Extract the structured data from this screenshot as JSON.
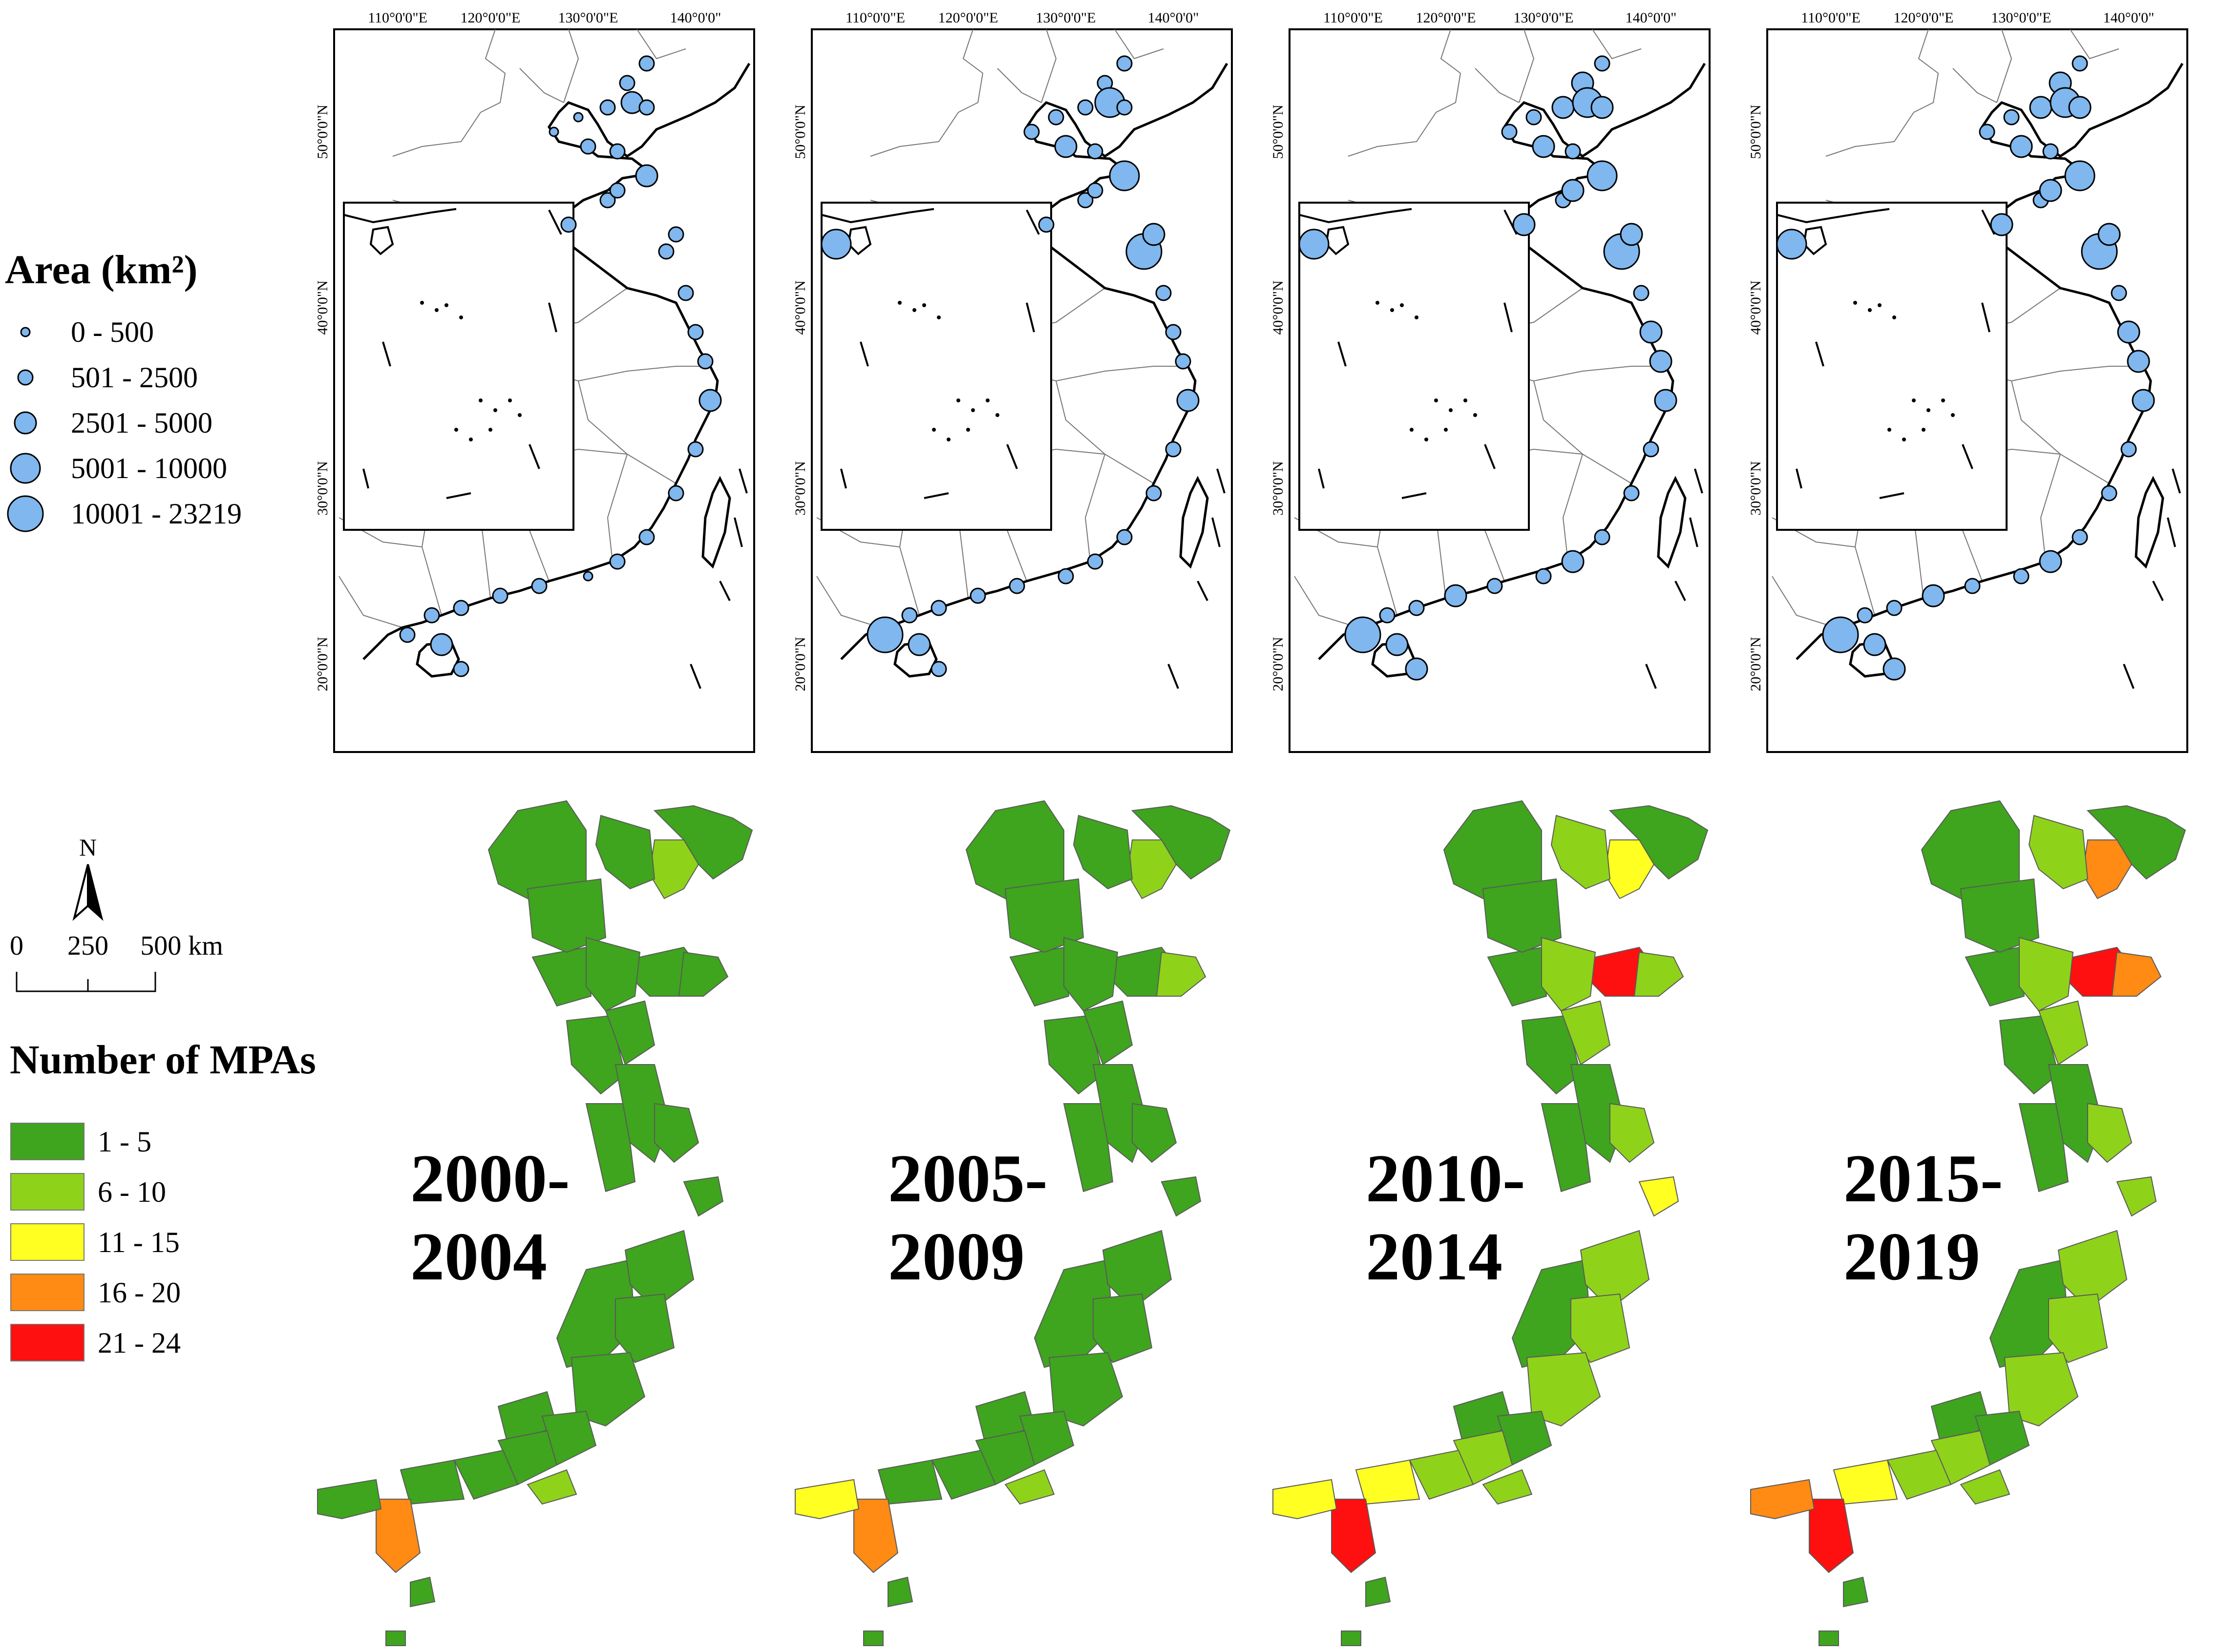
{
  "area_legend": {
    "title": "Area (km²)",
    "classes": [
      "0 - 500",
      "501 - 2500",
      "2501 - 5000",
      "5001 - 10000",
      "10001 - 23219"
    ]
  },
  "count_legend": {
    "title": "Number of MPAs",
    "classes": [
      {
        "label": "1 - 5",
        "color": "#3fa41e"
      },
      {
        "label": "6 - 10",
        "color": "#8fd21a"
      },
      {
        "label": "11 - 15",
        "color": "#ffff22"
      },
      {
        "label": "16 - 20",
        "color": "#ff8a14"
      },
      {
        "label": "21 - 24",
        "color": "#ff1010"
      }
    ]
  },
  "north_arrow": {
    "label": "N"
  },
  "scale_bar": {
    "labels": [
      "0",
      "250",
      "500 km"
    ]
  },
  "graticule": {
    "longitudes": [
      "110°0'0\"E",
      "120°0'0\"E",
      "130°0'0\"E",
      "140°0'0\""
    ],
    "latitudes": [
      "50°0'0\"N",
      "40°0'0\"N",
      "30°0'0\"N",
      "20°0'0\"N"
    ]
  },
  "periods": [
    {
      "line1": "2000-",
      "line2": "2004",
      "dots": [
        1,
        1,
        1,
        2,
        1,
        0,
        0,
        1,
        1,
        2,
        1,
        1,
        1,
        1,
        1,
        1,
        2,
        1,
        1,
        1,
        1,
        0,
        1,
        1,
        1,
        1,
        1,
        2,
        1,
        1,
        1
      ],
      "fills": [
        0,
        1,
        0,
        0,
        0,
        0,
        0,
        0,
        0,
        0,
        0,
        0,
        0,
        0,
        0,
        0,
        0,
        0,
        3,
        0,
        1
      ]
    },
    {
      "line1": "2005-",
      "line2": "2009",
      "dots": [
        1,
        1,
        1,
        3,
        1,
        1,
        1,
        2,
        1,
        3,
        1,
        1,
        4,
        1,
        1,
        1,
        2,
        1,
        1,
        1,
        1,
        1,
        4,
        1,
        1,
        1,
        1,
        2,
        1,
        2,
        1
      ],
      "fills": [
        0,
        1,
        0,
        0,
        1,
        0,
        0,
        0,
        0,
        0,
        0,
        0,
        0,
        0,
        0,
        0,
        0,
        0,
        3,
        2,
        1
      ]
    },
    {
      "line1": "2010-",
      "line2": "2014",
      "dots": [
        1,
        2,
        2,
        3,
        2,
        1,
        1,
        2,
        1,
        3,
        1,
        2,
        4,
        1,
        2,
        2,
        2,
        1,
        1,
        1,
        2,
        1,
        4,
        1,
        2,
        1,
        1,
        2,
        2,
        2,
        2
      ],
      "fills": [
        0,
        2,
        1,
        4,
        1,
        0,
        1,
        1,
        0,
        1,
        2,
        1,
        1,
        1,
        0,
        1,
        1,
        2,
        4,
        2,
        1
      ]
    },
    {
      "line1": "2015-",
      "line2": "2019",
      "dots": [
        1,
        2,
        2,
        3,
        2,
        1,
        1,
        2,
        1,
        3,
        1,
        2,
        4,
        1,
        2,
        2,
        2,
        1,
        1,
        1,
        2,
        1,
        4,
        1,
        2,
        1,
        1,
        2,
        2,
        2,
        2
      ],
      "fills": [
        0,
        3,
        1,
        4,
        3,
        0,
        1,
        1,
        0,
        1,
        1,
        1,
        1,
        1,
        0,
        1,
        1,
        2,
        4,
        3,
        1
      ]
    }
  ]
}
